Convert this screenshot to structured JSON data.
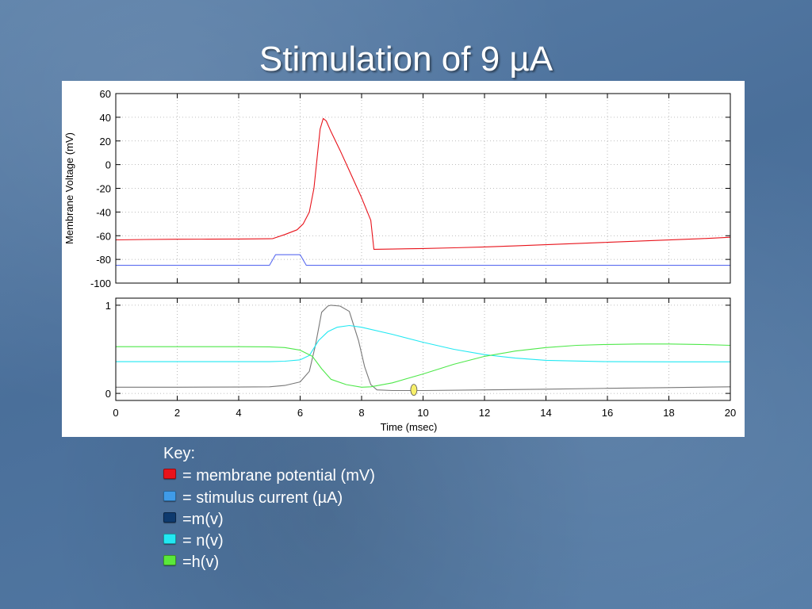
{
  "slide": {
    "title": "Stimulation of 9 µA"
  },
  "key": {
    "title": "Key:",
    "items": [
      {
        "label": "= membrane potential (mV)",
        "color": "#e8131b"
      },
      {
        "label": "= stimulus current (µA)",
        "color": "#3f9be8"
      },
      {
        "label": "=m(v)",
        "color": "#0e3a6e"
      },
      {
        "label": "= n(v)",
        "color": "#22e8f2"
      },
      {
        "label": "=h(v)",
        "color": "#5ae83a"
      }
    ]
  },
  "chart_data": [
    {
      "type": "line",
      "title": "",
      "xlabel": "",
      "ylabel": "Membrane Voltage (mV)",
      "xlim": [
        0,
        20
      ],
      "ylim": [
        -100,
        60
      ],
      "yticks": [
        60,
        40,
        20,
        0,
        -20,
        -40,
        -60,
        -80,
        -100
      ],
      "grid": true,
      "series": [
        {
          "name": "membrane potential",
          "color": "#e8131b",
          "x": [
            0,
            1,
            2,
            3,
            4,
            5,
            5.1,
            5.5,
            5.9,
            6.1,
            6.3,
            6.45,
            6.55,
            6.65,
            6.75,
            6.85,
            7.0,
            7.3,
            7.6,
            8.0,
            8.3,
            8.4,
            9,
            10,
            11,
            12,
            13,
            14,
            15,
            16,
            17,
            18,
            19,
            20
          ],
          "y": [
            -63.5,
            -63.2,
            -63.0,
            -62.9,
            -62.8,
            -62.6,
            -62.5,
            -59,
            -55,
            -50,
            -40,
            -20,
            5,
            30,
            39,
            37,
            28,
            12,
            -5,
            -28,
            -47,
            -71.5,
            -71.3,
            -70.8,
            -70.2,
            -69.5,
            -68.6,
            -67.6,
            -66.6,
            -65.6,
            -64.6,
            -63.6,
            -62.6,
            -61.3
          ]
        },
        {
          "name": "stimulus current",
          "color": "#5b6cf0",
          "x": [
            0,
            5.0,
            5.2,
            6.0,
            6.2,
            20
          ],
          "y": [
            -85,
            -85,
            -76,
            -76,
            -85,
            -85
          ]
        }
      ]
    },
    {
      "type": "line",
      "title": "",
      "xlabel": "Time (msec)",
      "ylabel": "",
      "xlim": [
        0,
        20
      ],
      "ylim": [
        -0.08,
        1.08
      ],
      "xticks": [
        0,
        2,
        4,
        6,
        8,
        10,
        12,
        14,
        16,
        18,
        20
      ],
      "yticks": [
        1,
        0
      ],
      "grid": true,
      "marker": {
        "x": 9.7,
        "y": 0.04,
        "color": "#f7ef6a"
      },
      "series": [
        {
          "name": "m(v)",
          "color": "#777777",
          "x": [
            0,
            2,
            4,
            5,
            5.5,
            6.0,
            6.3,
            6.5,
            6.7,
            6.9,
            7.0,
            7.3,
            7.6,
            7.9,
            8.1,
            8.3,
            8.5,
            9,
            10,
            12,
            14,
            16,
            18,
            20
          ],
          "y": [
            0.07,
            0.07,
            0.072,
            0.075,
            0.09,
            0.13,
            0.25,
            0.55,
            0.92,
            0.99,
            1.0,
            0.99,
            0.93,
            0.6,
            0.3,
            0.1,
            0.04,
            0.032,
            0.032,
            0.04,
            0.048,
            0.058,
            0.066,
            0.075
          ]
        },
        {
          "name": "n(v)",
          "color": "#22e8f2",
          "x": [
            0,
            2,
            4,
            5,
            5.5,
            6.0,
            6.3,
            6.6,
            6.9,
            7.2,
            7.6,
            8.0,
            9,
            10,
            11,
            12,
            13,
            14,
            16,
            18,
            20
          ],
          "y": [
            0.36,
            0.36,
            0.36,
            0.36,
            0.365,
            0.38,
            0.43,
            0.6,
            0.7,
            0.75,
            0.77,
            0.75,
            0.67,
            0.58,
            0.5,
            0.44,
            0.4,
            0.375,
            0.36,
            0.358,
            0.358
          ]
        },
        {
          "name": "h(v)",
          "color": "#4ee84a",
          "x": [
            0,
            2,
            4,
            5,
            5.5,
            6.0,
            6.4,
            6.7,
            7.0,
            7.5,
            8.0,
            8.3,
            9,
            10,
            11,
            12,
            13,
            14,
            15,
            16,
            17,
            18,
            19,
            20
          ],
          "y": [
            0.53,
            0.53,
            0.53,
            0.528,
            0.52,
            0.49,
            0.42,
            0.28,
            0.16,
            0.1,
            0.07,
            0.075,
            0.12,
            0.22,
            0.33,
            0.42,
            0.48,
            0.52,
            0.545,
            0.555,
            0.56,
            0.56,
            0.555,
            0.545
          ]
        }
      ]
    }
  ]
}
